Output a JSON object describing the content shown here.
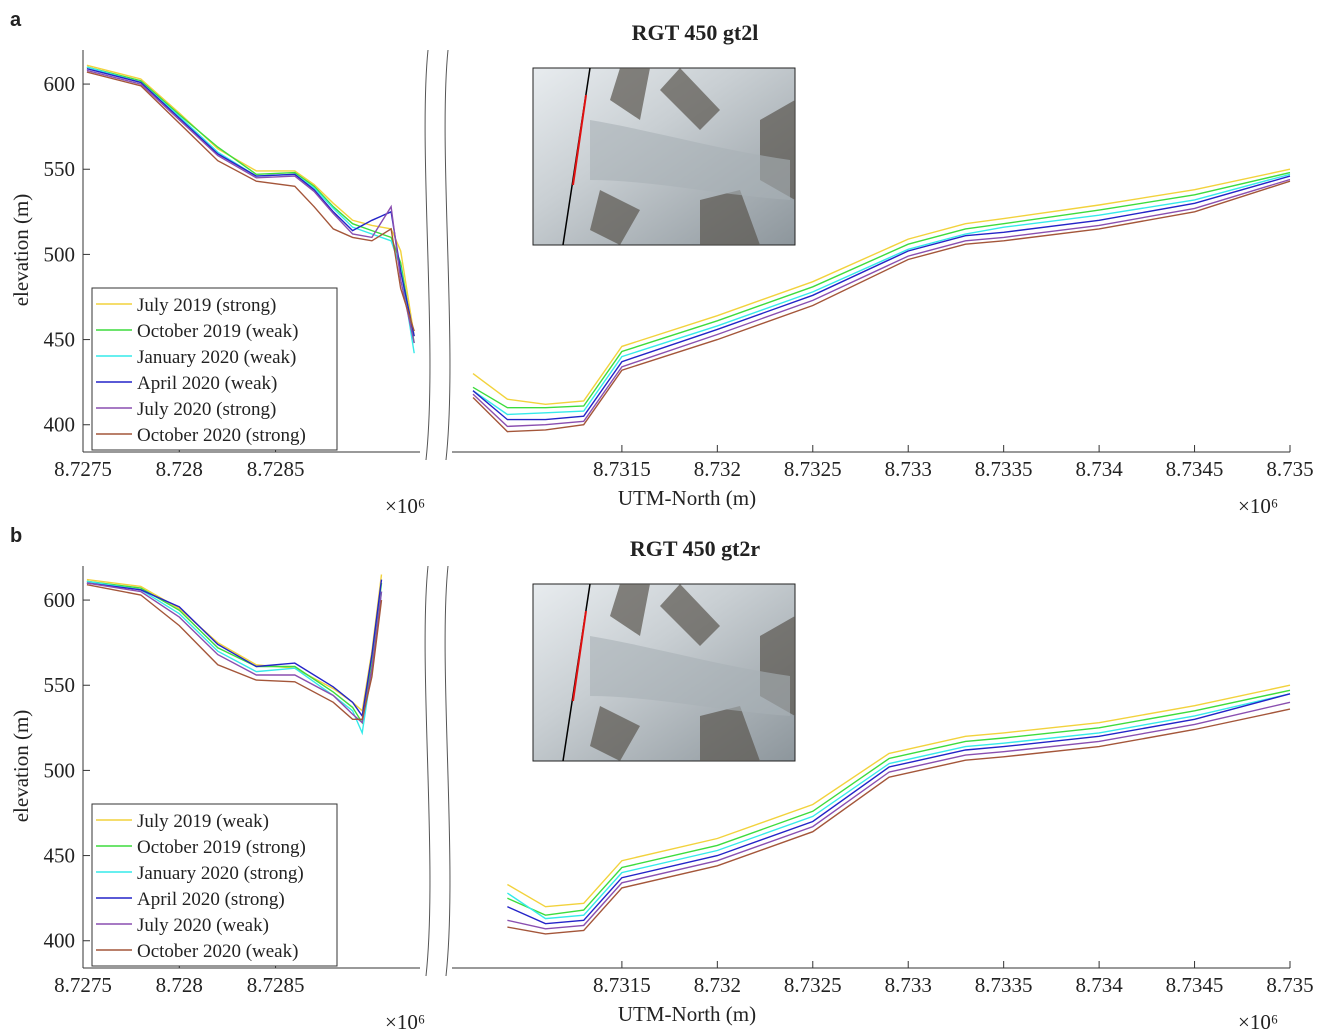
{
  "chart_data": [
    {
      "type": "line",
      "panel": "a",
      "title": "RGT 450 gt2l",
      "ylabel": "elevation (m)",
      "xlabel": "UTM-North (m)",
      "x_multiplier": "×10⁶",
      "ylim": [
        384,
        620
      ],
      "yticks": [
        400,
        450,
        500,
        550,
        600
      ],
      "legend": "lower-left",
      "xlim": [
        [
          8.7275,
          8.72925
        ],
        [
          8.73061,
          8.735
        ]
      ],
      "xticks": [
        [
          8.7275,
          8.728,
          8.7285
        ],
        [
          8.7315,
          8.732,
          8.7325,
          8.733,
          8.7335,
          8.734,
          8.7345,
          8.735
        ]
      ],
      "x": [
        [
          8.72752,
          8.7278,
          8.728,
          8.7282,
          8.7284,
          8.7286,
          8.7287,
          8.7288,
          8.7289,
          8.729,
          8.7291,
          8.72915,
          8.72922
        ],
        [
          8.73072,
          8.7309,
          8.7311,
          8.7313,
          8.7315,
          8.732,
          8.7325,
          8.733,
          8.7333,
          8.7335,
          8.734,
          8.7345,
          8.735
        ]
      ],
      "series": [
        {
          "name": "July 2019 (strong)",
          "color": "#f2d23c",
          "values": [
            [
              611,
              603,
              583,
              562,
              549,
              549,
              541,
              530,
              520,
              517,
              515,
              502,
              452
            ],
            [
              430,
              415,
              412,
              414,
              446,
              464,
              484,
              509,
              518,
              521,
              529,
              538,
              550
            ]
          ]
        },
        {
          "name": "October 2019 (weak)",
          "color": "#3ddc3d",
          "values": [
            [
              610,
              602,
              582,
              563,
              547,
              548,
              540,
              528,
              518,
              514,
              510,
              495,
              448
            ],
            [
              422,
              410,
              410,
              411,
              443,
              461,
              481,
              506,
              515,
              518,
              526,
              535,
              548
            ]
          ]
        },
        {
          "name": "January 2020 (weak)",
          "color": "#35eaea",
          "values": [
            [
              610,
              601,
              581,
              560,
              546,
              547,
              539,
              527,
              516,
              512,
              508,
              492,
              442
            ],
            [
              420,
              406,
              407,
              408,
              440,
              458,
              478,
              503,
              512,
              516,
              523,
              532,
              547
            ]
          ]
        },
        {
          "name": "April 2020 (weak)",
          "color": "#2424c8",
          "values": [
            [
              609,
              601,
              580,
              559,
              546,
              547,
              538,
              525,
              514,
              520,
              525,
              490,
              452
            ],
            [
              420,
              403,
              403,
              405,
              437,
              456,
              476,
              502,
              511,
              513,
              520,
              530,
              546
            ]
          ]
        },
        {
          "name": "July 2020 (strong)",
          "color": "#8a4fb0",
          "values": [
            [
              608,
              600,
              579,
              558,
              545,
              546,
              537,
              524,
              512,
              510,
              528,
              485,
              448
            ],
            [
              418,
              399,
              400,
              402,
              434,
              453,
              473,
              499,
              508,
              510,
              517,
              527,
              544
            ]
          ]
        },
        {
          "name": "October 2020 (strong)",
          "color": "#a4563a",
          "values": [
            [
              607,
              599,
              577,
              555,
              543,
              540,
              528,
              515,
              510,
              508,
              515,
              480,
              455
            ],
            [
              416,
              396,
              397,
              400,
              432,
              450,
              470,
              497,
              506,
              508,
              515,
              525,
              543
            ]
          ]
        }
      ]
    },
    {
      "type": "line",
      "panel": "b",
      "title": "RGT 450 gt2r",
      "ylabel": "elevation (m)",
      "xlabel": "UTM-North (m)",
      "x_multiplier": "×10⁶",
      "ylim": [
        384,
        620
      ],
      "yticks": [
        400,
        450,
        500,
        550,
        600
      ],
      "legend": "lower-left",
      "xlim": [
        [
          8.7275,
          8.72925
        ],
        [
          8.73061,
          8.735
        ]
      ],
      "xticks": [
        [
          8.7275,
          8.728,
          8.7285
        ],
        [
          8.7315,
          8.732,
          8.7325,
          8.733,
          8.7335,
          8.734,
          8.7345,
          8.735
        ]
      ],
      "x": [
        [
          8.72752,
          8.7278,
          8.728,
          8.7282,
          8.7284,
          8.7286,
          8.7288,
          8.7289,
          8.72895,
          8.729,
          8.72905
        ],
        [
          8.7309,
          8.7311,
          8.7313,
          8.7315,
          8.732,
          8.7325,
          8.7329,
          8.7333,
          8.7335,
          8.734,
          8.7345,
          8.735
        ]
      ],
      "series": [
        {
          "name": "July 2019 (weak)",
          "color": "#f2d23c",
          "values": [
            [
              612,
              608,
              595,
              575,
              562,
              560,
              548,
              540,
              535,
              570,
              615
            ],
            [
              433,
              420,
              422,
              447,
              460,
              480,
              510,
              520,
              522,
              528,
              538,
              550
            ]
          ]
        },
        {
          "name": "October 2019 (strong)",
          "color": "#3ddc3d",
          "values": [
            [
              611,
              607,
              594,
              572,
              561,
              561,
              546,
              537,
              528,
              565,
              610
            ],
            [
              425,
              415,
              418,
              443,
              456,
              476,
              507,
              517,
              519,
              525,
              535,
              547
            ]
          ]
        },
        {
          "name": "January 2020 (strong)",
          "color": "#35eaea",
          "values": [
            [
              611,
              606,
              592,
              570,
              558,
              560,
              544,
              535,
              522,
              560,
              605
            ],
            [
              428,
              413,
              415,
              440,
              453,
              473,
              504,
              514,
              516,
              522,
              532,
              545
            ]
          ]
        },
        {
          "name": "April 2020 (strong)",
          "color": "#2424c8",
          "values": [
            [
              610,
              606,
              596,
              574,
              561,
              563,
              549,
              540,
              532,
              568,
              612
            ],
            [
              420,
              410,
              412,
              437,
              450,
              470,
              502,
              512,
              514,
              520,
              530,
              545
            ]
          ]
        },
        {
          "name": "July 2020 (weak)",
          "color": "#8a4fb0",
          "values": [
            [
              610,
              605,
              590,
              568,
              556,
              556,
              544,
              533,
              528,
              560,
              605
            ],
            [
              412,
              407,
              409,
              434,
              447,
              467,
              499,
              509,
              511,
              517,
              527,
              540
            ]
          ]
        },
        {
          "name": "October 2020 (weak)",
          "color": "#a4563a",
          "values": [
            [
              609,
              603,
              585,
              562,
              553,
              552,
              540,
              530,
              530,
              555,
              600
            ],
            [
              408,
              404,
              406,
              431,
              444,
              464,
              496,
              506,
              508,
              514,
              524,
              536
            ]
          ]
        }
      ]
    }
  ]
}
